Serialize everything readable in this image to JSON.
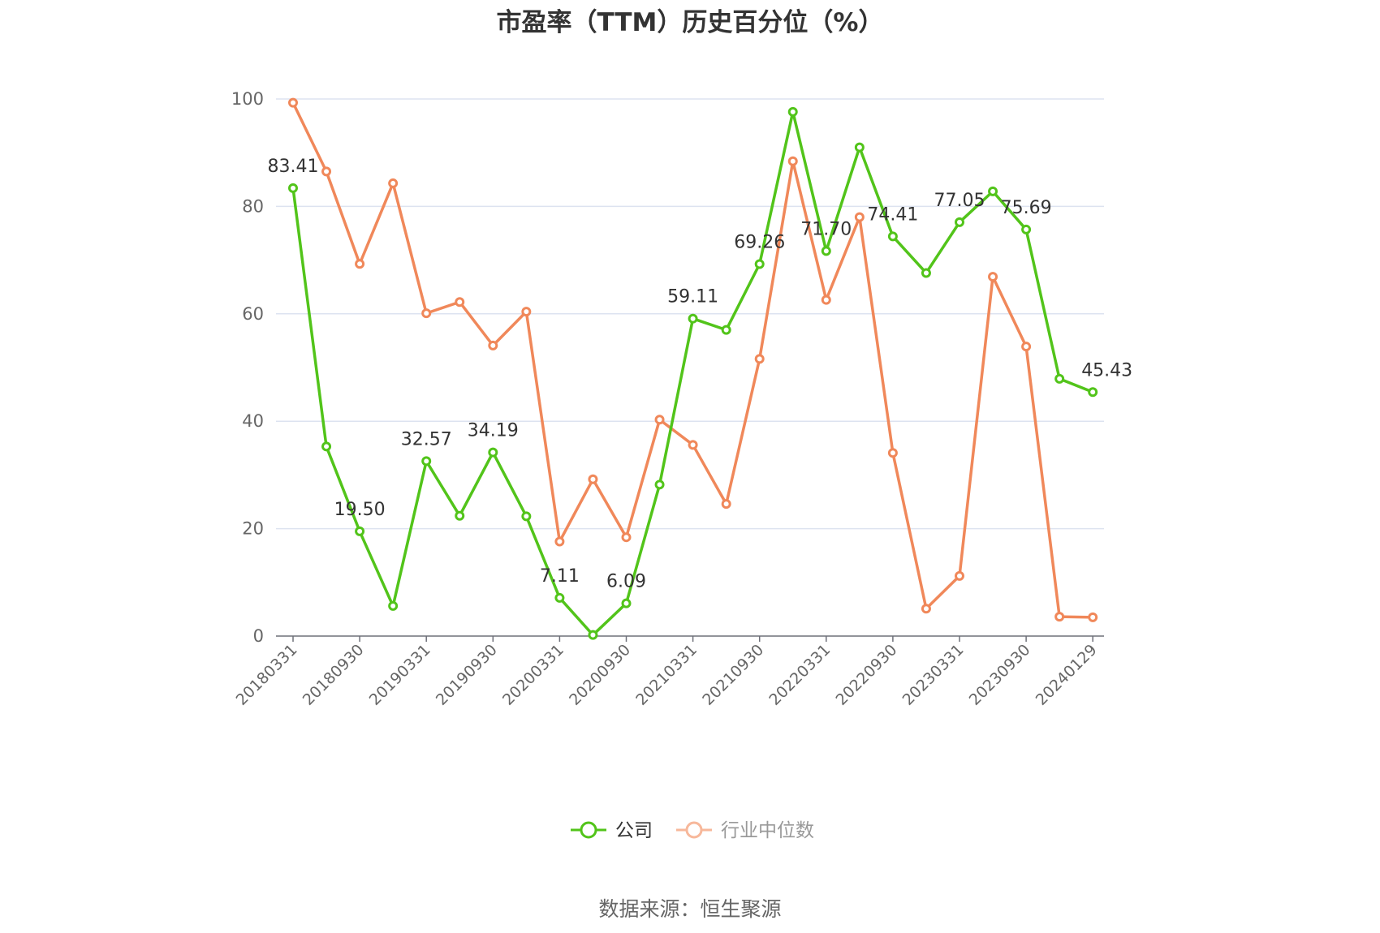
{
  "chart_data": {
    "type": "line",
    "title": "市盈率（TTM）历史百分位（%）",
    "xlabel": "",
    "ylabel": "",
    "ylim": [
      0,
      100
    ],
    "yticks": [
      0,
      20,
      40,
      60,
      80,
      100
    ],
    "grid": true,
    "legend_position": "bottom",
    "x": [
      "20180331",
      "20180630",
      "20180930",
      "20181231",
      "20190331",
      "20190630",
      "20190930",
      "20191231",
      "20200331",
      "20200630",
      "20200930",
      "20201231",
      "20210331",
      "20210630",
      "20210930",
      "20211231",
      "20220331",
      "20220630",
      "20220930",
      "20221231",
      "20230331",
      "20230630",
      "20230930",
      "20231231",
      "20240129"
    ],
    "x_tick_labels": [
      "20180331",
      "20180930",
      "20190331",
      "20190930",
      "20200331",
      "20200930",
      "20210331",
      "20210930",
      "20220331",
      "20220930",
      "20230331",
      "20230930",
      "20240129"
    ],
    "series": [
      {
        "name": "公司",
        "color": "#52c41a",
        "values": [
          83.41,
          35.3,
          19.5,
          5.6,
          32.57,
          22.4,
          34.19,
          22.3,
          7.11,
          0.2,
          6.09,
          28.2,
          59.11,
          57.0,
          69.26,
          97.6,
          71.7,
          91.0,
          74.41,
          67.6,
          77.05,
          82.8,
          75.69,
          47.9,
          45.43
        ],
        "data_labels": [
          "83.41",
          "",
          "19.50",
          "",
          "32.57",
          "",
          "34.19",
          "",
          "7.11",
          "",
          "6.09",
          "",
          "59.11",
          "",
          "69.26",
          "",
          "71.70",
          "",
          "74.41",
          "",
          "77.05",
          "",
          "75.69",
          "",
          "45.43"
        ]
      },
      {
        "name": "行业中位数",
        "color": "#f0885a",
        "values": [
          99.3,
          86.5,
          69.3,
          84.3,
          60.1,
          62.2,
          54.1,
          60.4,
          17.6,
          29.2,
          18.4,
          40.3,
          35.6,
          24.6,
          51.6,
          88.4,
          62.6,
          78.0,
          34.1,
          5.1,
          11.2,
          66.9,
          53.9,
          3.6,
          3.5
        ]
      }
    ],
    "legend": [
      {
        "name": "公司",
        "active": true
      },
      {
        "name": "行业中位数",
        "active": false
      }
    ]
  },
  "source_text": "数据来源：恒生聚源",
  "colors": {
    "company": "#52c41a",
    "industry": "#f0885a",
    "industry_legend": "#f7b89b",
    "grid": "#dde3f0",
    "axis": "#6e7079",
    "text": "#333333",
    "muted": "#999999"
  }
}
